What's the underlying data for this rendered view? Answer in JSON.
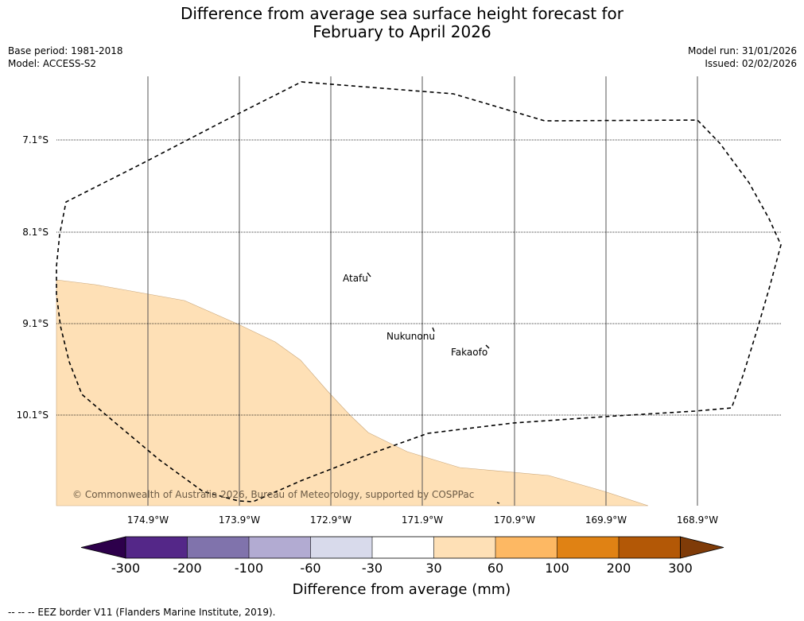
{
  "title": {
    "line1": "Difference from average sea surface height forecast for",
    "line2": "February to April 2026"
  },
  "meta": {
    "base_period": "Base period: 1981-2018",
    "model": "Model: ACCESS-S2",
    "model_run": "Model run: 31/01/2026",
    "issued": "Issued: 02/02/2026"
  },
  "map": {
    "latitude_labels": [
      "7.1°S",
      "8.1°S",
      "9.1°S",
      "10.1°S"
    ],
    "longitude_labels": [
      "174.9°W",
      "173.9°W",
      "172.9°W",
      "171.9°W",
      "170.9°W",
      "169.9°W",
      "168.9°W"
    ],
    "places": [
      "Atafu",
      "Nukunonu",
      "Fakaofo"
    ],
    "copyright": "© Commonwealth of Australia 2026, Bureau of Meteorology, supported by COSPPac"
  },
  "colorbar": {
    "ticks": [
      "-300",
      "-200",
      "-100",
      "-60",
      "-30",
      "30",
      "60",
      "100",
      "200",
      "300"
    ],
    "colors": [
      "#2d004b",
      "#542788",
      "#8073ac",
      "#b2abd2",
      "#d8daeb",
      "#ffffff",
      "#fee0b6",
      "#fdb863",
      "#e08214",
      "#b35806",
      "#7f3b08"
    ],
    "label": "Difference from average (mm)"
  },
  "colors": {
    "fill_30_60": "#fee0b6",
    "eez_border": "#000000",
    "gridline": "#000000"
  },
  "legend_note": "--  --  -- EEZ border V11 (Flanders Marine Institute, 2019)."
}
